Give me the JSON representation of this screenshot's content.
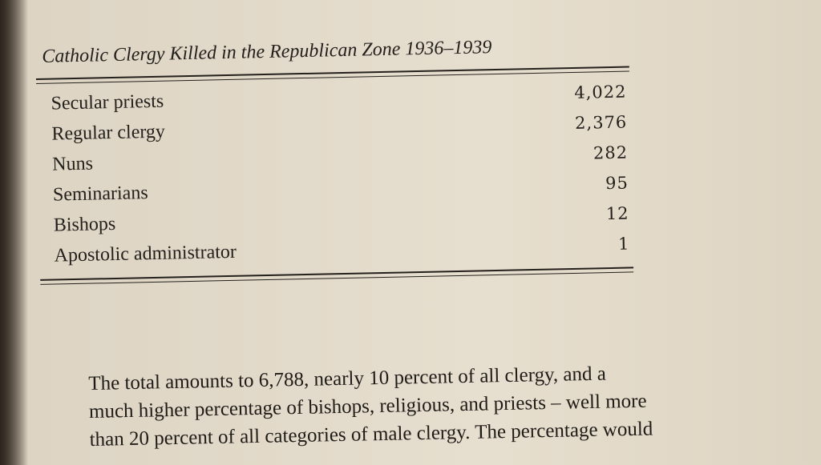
{
  "table": {
    "title": "Catholic Clergy Killed in the Republican Zone 1936–1939",
    "rows": [
      {
        "label": "Secular priests",
        "value": "4,022"
      },
      {
        "label": "Regular clergy",
        "value": "2,376"
      },
      {
        "label": "Nuns",
        "value": "282"
      },
      {
        "label": "Seminarians",
        "value": "95"
      },
      {
        "label": "Bishops",
        "value": "12"
      },
      {
        "label": "Apostolic administrator",
        "value": "1"
      }
    ]
  },
  "paragraph": {
    "lines": [
      "The total amounts to 6,788, nearly 10 percent of all clergy, and a",
      "much higher percentage of bishops, religious, and priests – well more",
      "than 20 percent of all categories of male clergy. The percentage would"
    ]
  },
  "colors": {
    "ink": "#24201c",
    "paper": "#e6dece"
  }
}
